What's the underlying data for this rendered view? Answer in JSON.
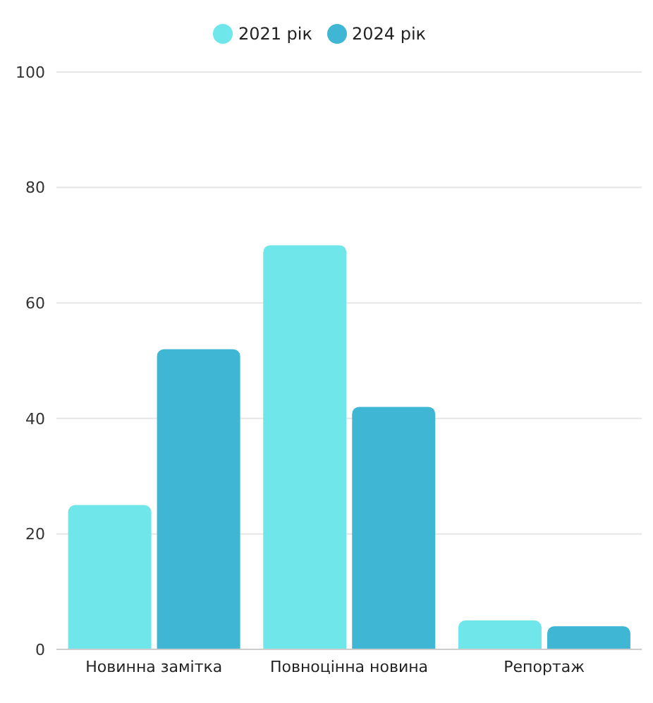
{
  "chart_data": {
    "type": "bar",
    "categories": [
      "Новинна замітка",
      "Повноцінна новина",
      "Репортаж"
    ],
    "series": [
      {
        "name": "2021 рік",
        "color": "#6ee6ea",
        "values": [
          25,
          70,
          5
        ]
      },
      {
        "name": "2024 рік",
        "color": "#3fb6d4",
        "values": [
          52,
          42,
          4
        ]
      }
    ],
    "ylim": [
      0,
      100
    ],
    "yticks": [
      0,
      20,
      40,
      60,
      80,
      100
    ],
    "grid": "y",
    "legend": "top"
  }
}
